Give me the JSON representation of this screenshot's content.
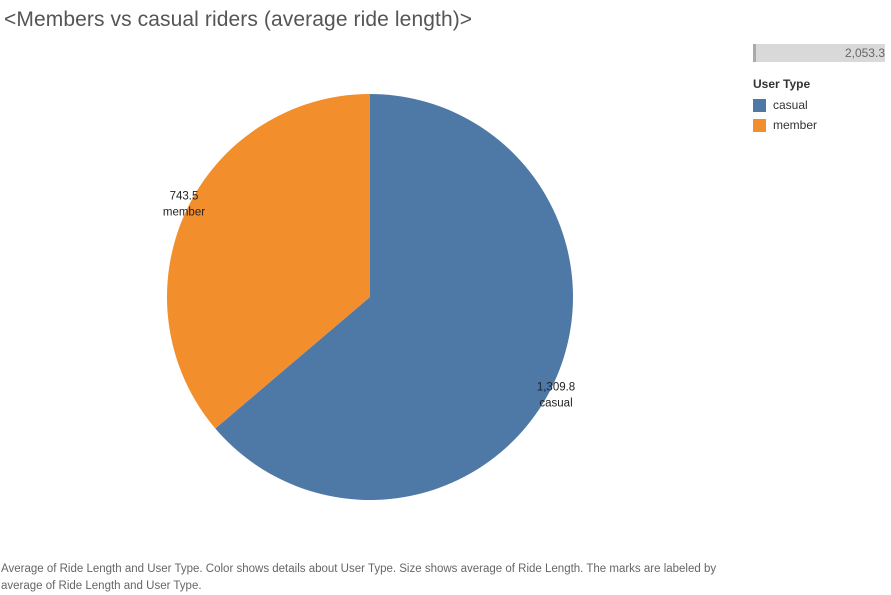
{
  "title": "<Members vs casual riders (average ride length)>",
  "size_legend": {
    "max_value": "2,053.3"
  },
  "legend": {
    "title": "User Type",
    "items": [
      {
        "label": "casual",
        "color": "#4e79a7"
      },
      {
        "label": "member",
        "color": "#f28e2b"
      }
    ]
  },
  "chart_data": {
    "type": "pie",
    "title": "<Members vs casual riders (average ride length)>",
    "slices": [
      {
        "label": "casual",
        "value": 1309.8,
        "display": "1,309.8",
        "color": "#4e79a7"
      },
      {
        "label": "member",
        "value": 743.5,
        "display": "743.5",
        "color": "#f28e2b"
      }
    ],
    "legend_position": "top-right"
  },
  "caption": "Average of Ride Length and User Type.  Color shows details about User Type.  Size shows average of Ride Length.  The marks are labeled by average of Ride Length and User Type."
}
